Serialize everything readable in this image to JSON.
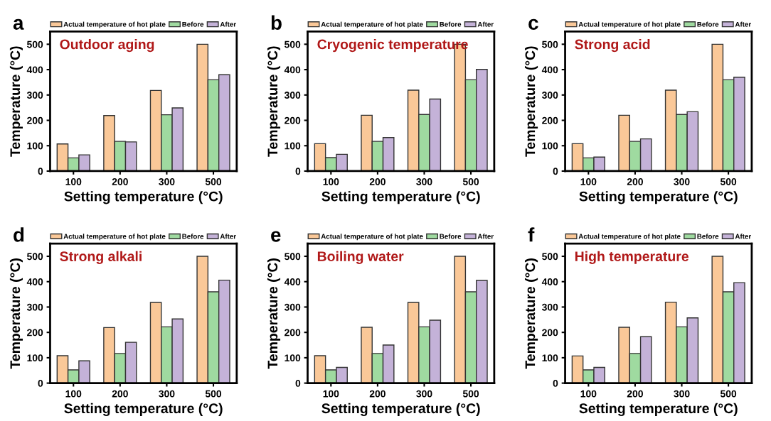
{
  "chart_data": [
    {
      "type": "bar",
      "title": "a",
      "annotations": [
        "Outdoor aging"
      ],
      "xlabel": "Setting temperature (°C)",
      "ylabel": "Temperature (°C)",
      "categories": [
        "100",
        "200",
        "300",
        "500"
      ],
      "ylim": [
        0,
        550
      ],
      "yticks": [
        0,
        100,
        200,
        300,
        400,
        500
      ],
      "legend": "top",
      "series": [
        {
          "name": "Actual temperature of hot plate",
          "color": "#fac898",
          "values": [
            107,
            219,
            318,
            500
          ]
        },
        {
          "name": "Before",
          "color": "#9fdaa0",
          "values": [
            52,
            117,
            222,
            360
          ]
        },
        {
          "name": "After",
          "color": "#c4b2d8",
          "values": [
            64,
            115,
            249,
            380
          ]
        }
      ]
    },
    {
      "type": "bar",
      "title": "b",
      "annotations": [
        "Cryogenic temperature"
      ],
      "xlabel": "Setting temperature (°C)",
      "ylabel": "Temperature (°C)",
      "categories": [
        "100",
        "200",
        "300",
        "500"
      ],
      "ylim": [
        0,
        550
      ],
      "yticks": [
        0,
        100,
        200,
        300,
        400,
        500
      ],
      "legend": "top",
      "series": [
        {
          "name": "Actual temperature of hot plate",
          "color": "#fac898",
          "values": [
            108,
            220,
            319,
            500
          ]
        },
        {
          "name": "Before",
          "color": "#9fdaa0",
          "values": [
            53,
            117,
            223,
            360
          ]
        },
        {
          "name": "After",
          "color": "#c4b2d8",
          "values": [
            66,
            132,
            284,
            401
          ]
        }
      ]
    },
    {
      "type": "bar",
      "title": "c",
      "annotations": [
        "Strong acid"
      ],
      "xlabel": "Setting temperature (°C)",
      "ylabel": "Temperature (°C)",
      "categories": [
        "100",
        "200",
        "300",
        "500"
      ],
      "ylim": [
        0,
        550
      ],
      "yticks": [
        0,
        100,
        200,
        300,
        400,
        500
      ],
      "legend": "top",
      "series": [
        {
          "name": "Actual temperature of hot plate",
          "color": "#fac898",
          "values": [
            108,
            220,
            319,
            500
          ]
        },
        {
          "name": "Before",
          "color": "#9fdaa0",
          "values": [
            52,
            117,
            223,
            360
          ]
        },
        {
          "name": "After",
          "color": "#c4b2d8",
          "values": [
            55,
            127,
            234,
            370
          ]
        }
      ]
    },
    {
      "type": "bar",
      "title": "d",
      "annotations": [
        "Strong alkali"
      ],
      "xlabel": "Setting temperature (°C)",
      "ylabel": "Temperature (°C)",
      "categories": [
        "100",
        "200",
        "300",
        "500"
      ],
      "ylim": [
        0,
        550
      ],
      "yticks": [
        0,
        100,
        200,
        300,
        400,
        500
      ],
      "legend": "top",
      "series": [
        {
          "name": "Actual temperature of hot plate",
          "color": "#fac898",
          "values": [
            108,
            219,
            318,
            500
          ]
        },
        {
          "name": "Before",
          "color": "#9fdaa0",
          "values": [
            52,
            117,
            222,
            360
          ]
        },
        {
          "name": "After",
          "color": "#c4b2d8",
          "values": [
            88,
            161,
            253,
            406
          ]
        }
      ]
    },
    {
      "type": "bar",
      "title": "e",
      "annotations": [
        "Boiling water"
      ],
      "xlabel": "Setting temperature (°C)",
      "ylabel": "Temperature (°C)",
      "categories": [
        "100",
        "200",
        "300",
        "500"
      ],
      "ylim": [
        0,
        550
      ],
      "yticks": [
        0,
        100,
        200,
        300,
        400,
        500
      ],
      "legend": "top",
      "series": [
        {
          "name": "Actual temperature of hot plate",
          "color": "#fac898",
          "values": [
            108,
            220,
            318,
            500
          ]
        },
        {
          "name": "Before",
          "color": "#9fdaa0",
          "values": [
            52,
            117,
            222,
            360
          ]
        },
        {
          "name": "After",
          "color": "#c4b2d8",
          "values": [
            62,
            150,
            248,
            405
          ]
        }
      ]
    },
    {
      "type": "bar",
      "title": "f",
      "annotations": [
        "High temperature"
      ],
      "xlabel": "Setting temperature (°C)",
      "ylabel": "Temperature (°C)",
      "categories": [
        "100",
        "200",
        "300",
        "500"
      ],
      "ylim": [
        0,
        550
      ],
      "yticks": [
        0,
        100,
        200,
        300,
        400,
        500
      ],
      "legend": "top",
      "series": [
        {
          "name": "Actual temperature of hot plate",
          "color": "#fac898",
          "values": [
            107,
            220,
            319,
            500
          ]
        },
        {
          "name": "Before",
          "color": "#9fdaa0",
          "values": [
            52,
            117,
            222,
            360
          ]
        },
        {
          "name": "After",
          "color": "#c4b2d8",
          "values": [
            62,
            183,
            257,
            396
          ]
        }
      ]
    }
  ]
}
